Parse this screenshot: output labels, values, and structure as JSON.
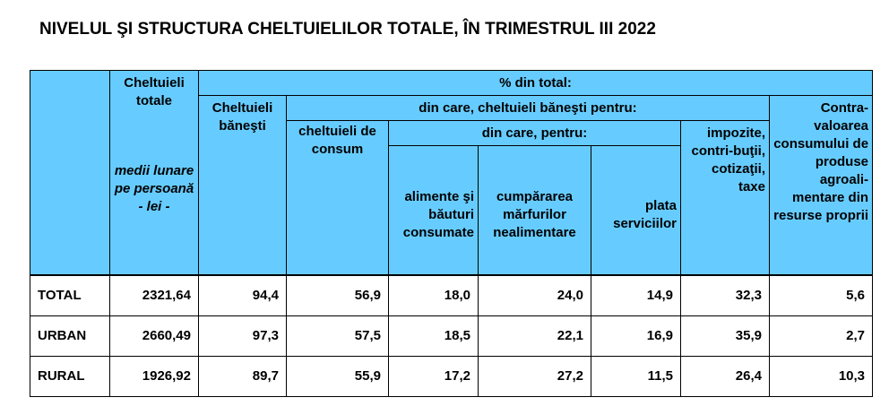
{
  "title": "NIVELUL ŞI STRUCTURA CHELTUIELILOR TOTALE, ÎN TRIMESTRUL III 2022",
  "header": {
    "cheltuieli_totale": "Cheltuieli totale",
    "medii_lunare": "medii lunare pe persoană - lei -",
    "pct_din_total": "% din total:",
    "cheltuieli_banesti": "Cheltuieli băneşti",
    "din_care_banesti": "din care, cheltuieli băneşti pentru:",
    "contravaloarea": "Contra-valoarea consumului de produse agroali-mentare din resurse proprii",
    "cheltuieli_consum": "cheltuieli de consum",
    "din_care_pentru": "din care, pentru:",
    "impozite": "impozite, contri-buţii, cotizaţii, taxe",
    "alimente": "alimente şi băuturi consumate",
    "cumpararea": "cumpărarea mărfurilor nealimentare",
    "plata": "plata serviciilor"
  },
  "rows": [
    {
      "label": "TOTAL",
      "values": [
        "2321,64",
        "94,4",
        "56,9",
        "18,0",
        "24,0",
        "14,9",
        "32,3",
        "5,6"
      ]
    },
    {
      "label": "URBAN",
      "values": [
        "2660,49",
        "97,3",
        "57,5",
        "18,5",
        "22,1",
        "16,9",
        "35,9",
        "2,7"
      ]
    },
    {
      "label": "RURAL",
      "values": [
        "1926,92",
        "89,7",
        "55,9",
        "17,2",
        "27,2",
        "11,5",
        "26,4",
        "10,3"
      ]
    }
  ]
}
